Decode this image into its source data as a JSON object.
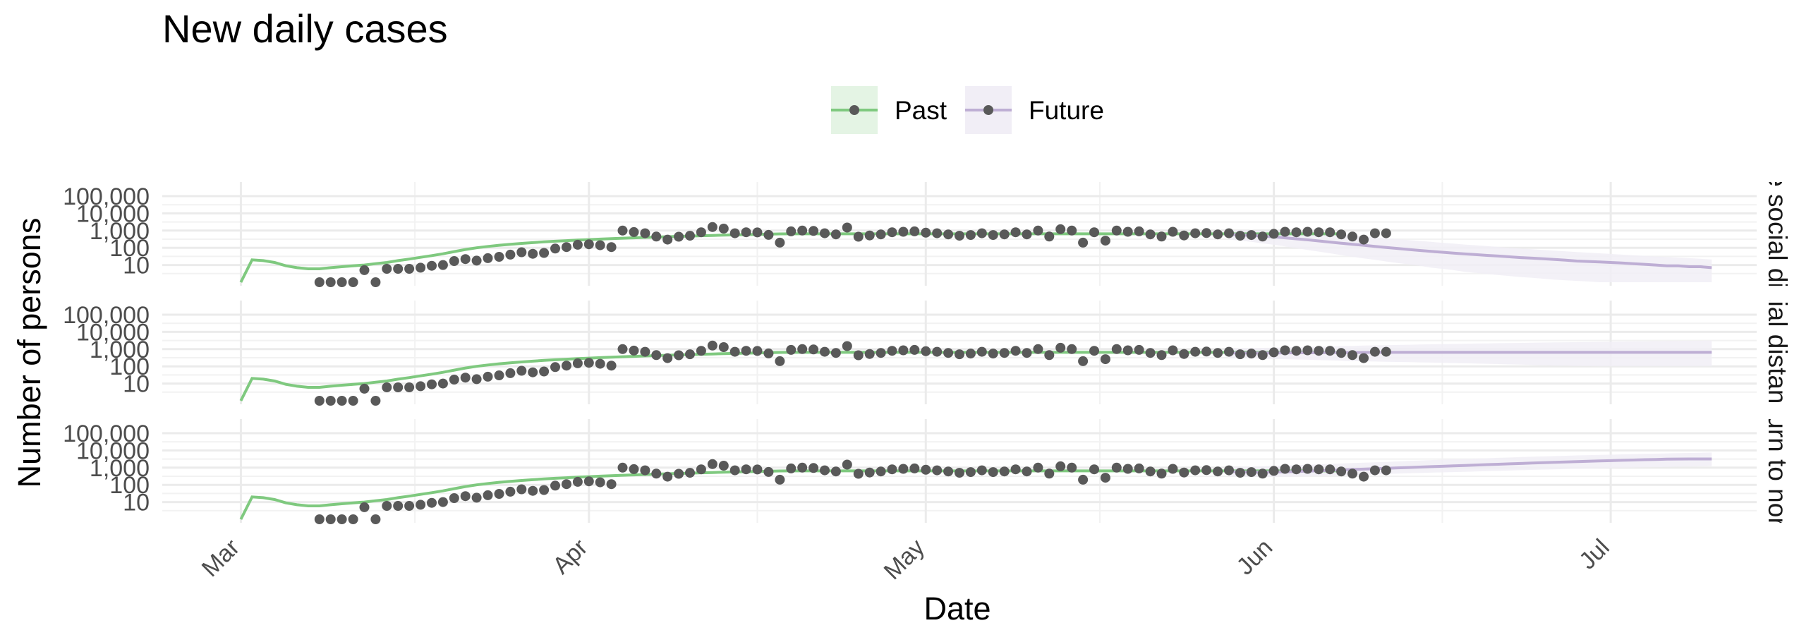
{
  "chart_data": {
    "type": "line",
    "title": "New daily cases",
    "xlabel": "Date",
    "ylabel": "Number of persons",
    "y_scale": "log10",
    "grid": true,
    "legend": {
      "position": "top",
      "entries": [
        {
          "name": "Past",
          "color": "#7fc97f",
          "fill": "#e4f4e4"
        },
        {
          "name": "Future",
          "color": "#beaed4",
          "fill": "#f1eef6"
        }
      ]
    },
    "x_ticks": [
      "Mar",
      "Apr",
      "May",
      "Jun",
      "Jul"
    ],
    "x_tick_dates": [
      "2020-03-01",
      "2020-04-01",
      "2020-05-01",
      "2020-06-01",
      "2020-07-01"
    ],
    "y_ticks": [
      "100,000",
      "10,000",
      "1,000",
      "100",
      "10"
    ],
    "y_tick_values": [
      100000,
      10000,
      1000,
      100,
      10
    ],
    "x_range": [
      "2020-02-23",
      "2020-07-14"
    ],
    "past_range": [
      "2020-03-01",
      "2020-05-27"
    ],
    "future_range": [
      "2020-05-28",
      "2020-07-10"
    ],
    "observed_cases": [
      null,
      null,
      null,
      1,
      1,
      1,
      1,
      5,
      1,
      6,
      6,
      6,
      7,
      9,
      10,
      17,
      22,
      18,
      25,
      30,
      40,
      55,
      45,
      50,
      90,
      110,
      150,
      160,
      140,
      110,
      1000,
      820,
      700,
      450,
      300,
      440,
      500,
      800,
      1600,
      1300,
      700,
      800,
      780,
      560,
      200,
      900,
      1000,
      950,
      700,
      600,
      1500,
      440,
      520,
      600,
      800,
      850,
      900,
      750,
      700,
      600,
      500,
      550,
      700,
      550,
      600,
      800,
      600,
      1000,
      450,
      1200,
      1000,
      200,
      800,
      260,
      1000,
      850,
      900,
      600,
      450,
      850,
      520,
      700,
      720,
      600,
      700,
      500,
      550,
      450,
      650,
      850,
      800,
      850,
      800,
      800,
      600,
      450,
      300,
      700,
      700
    ],
    "panels": [
      {
        "label": "Continue social distancing",
        "past_fit": [
          1,
          20,
          18,
          14,
          9,
          7,
          6,
          6,
          7,
          8,
          9,
          10,
          12,
          14,
          18,
          22,
          28,
          35,
          45,
          60,
          80,
          100,
          120,
          140,
          160,
          180,
          200,
          220,
          240,
          260,
          280,
          300,
          320,
          340,
          360,
          380,
          400,
          420,
          440,
          460,
          480,
          500,
          520,
          540,
          560,
          580,
          600,
          620,
          640,
          650,
          650,
          650,
          650,
          650,
          650,
          650,
          650,
          650,
          650,
          650,
          650,
          650,
          650,
          650,
          650,
          650,
          650,
          650,
          650,
          650,
          650,
          650,
          650,
          650,
          650,
          650,
          650,
          650,
          650,
          650,
          650,
          650,
          650,
          650,
          650,
          650,
          650,
          650,
          650,
          650,
          650,
          650,
          650,
          650,
          650,
          650,
          650,
          650,
          650
        ],
        "future_fit": [
          600,
          560,
          520,
          480,
          430,
          380,
          330,
          290,
          250,
          215,
          185,
          160,
          140,
          120,
          105,
          92,
          80,
          70,
          62,
          55,
          49,
          44,
          40,
          36,
          33,
          30,
          27,
          25,
          23,
          21,
          19,
          17,
          16,
          15,
          14,
          13,
          12,
          11,
          10,
          9,
          9,
          8,
          8,
          7
        ],
        "future_lower": [
          300,
          260,
          220,
          180,
          150,
          120,
          95,
          75,
          60,
          48,
          38,
          30,
          24,
          20,
          16,
          13,
          11,
          9,
          7,
          6,
          5,
          4,
          3.5,
          3,
          2.6,
          2.3,
          2,
          1.8,
          1.6,
          1.4,
          1.3,
          1.2,
          1.1,
          1,
          1,
          1,
          1,
          1,
          1,
          1,
          1,
          1,
          1,
          1
        ],
        "future_upper": [
          1100,
          1050,
          1000,
          950,
          900,
          850,
          800,
          750,
          700,
          640,
          580,
          520,
          460,
          410,
          360,
          320,
          280,
          250,
          220,
          195,
          175,
          155,
          140,
          125,
          112,
          100,
          90,
          82,
          75,
          68,
          62,
          57,
          52,
          48,
          44,
          40,
          37,
          34,
          31,
          29,
          27,
          25,
          23,
          21
        ]
      },
      {
        "label": "Partial distancing",
        "past_fit": [
          1,
          20,
          18,
          14,
          9,
          7,
          6,
          6,
          7,
          8,
          9,
          10,
          12,
          14,
          18,
          22,
          28,
          35,
          45,
          60,
          80,
          100,
          120,
          140,
          160,
          180,
          200,
          220,
          240,
          260,
          280,
          300,
          320,
          340,
          360,
          380,
          400,
          420,
          440,
          460,
          480,
          500,
          520,
          540,
          560,
          580,
          600,
          620,
          640,
          650,
          650,
          650,
          650,
          650,
          650,
          650,
          650,
          650,
          650,
          650,
          650,
          650,
          650,
          650,
          650,
          650,
          650,
          650,
          650,
          650,
          650,
          650,
          650,
          650,
          650,
          650,
          650,
          650,
          650,
          650,
          650,
          650,
          650,
          650,
          650,
          650,
          650,
          650,
          650,
          650,
          650,
          650,
          650,
          650,
          650,
          650,
          650,
          650,
          650
        ],
        "future_fit": [
          600,
          590,
          590,
          595,
          600,
          605,
          610,
          615,
          620,
          625,
          630,
          635,
          640,
          640,
          645,
          650,
          650,
          650,
          650,
          650,
          650,
          650,
          650,
          650,
          650,
          650,
          650,
          650,
          650,
          650,
          650,
          650,
          650,
          650,
          650,
          650,
          650,
          650,
          650,
          650,
          650,
          650,
          650,
          650
        ],
        "future_lower": [
          320,
          300,
          290,
          280,
          270,
          260,
          250,
          240,
          230,
          220,
          210,
          200,
          195,
          190,
          185,
          180,
          175,
          170,
          165,
          160,
          155,
          150,
          145,
          140,
          135,
          130,
          125,
          120,
          115,
          110,
          108,
          105,
          102,
          100,
          100,
          100,
          100,
          100,
          100,
          100,
          100,
          100,
          100,
          100
        ],
        "future_upper": [
          1100,
          1120,
          1150,
          1180,
          1220,
          1260,
          1300,
          1350,
          1400,
          1450,
          1500,
          1550,
          1600,
          1650,
          1700,
          1750,
          1800,
          1850,
          1900,
          1950,
          2000,
          2050,
          2100,
          2150,
          2200,
          2250,
          2300,
          2350,
          2400,
          2450,
          2500,
          2550,
          2600,
          2650,
          2700,
          2750,
          2800,
          2850,
          2900,
          2950,
          3000,
          3050,
          3100,
          3150
        ]
      },
      {
        "label": "Return to normal",
        "past_fit": [
          1,
          20,
          18,
          14,
          9,
          7,
          6,
          6,
          7,
          8,
          9,
          10,
          12,
          14,
          18,
          22,
          28,
          35,
          45,
          60,
          80,
          100,
          120,
          140,
          160,
          180,
          200,
          220,
          240,
          260,
          280,
          300,
          320,
          340,
          360,
          380,
          400,
          420,
          440,
          460,
          480,
          500,
          520,
          540,
          560,
          580,
          600,
          620,
          640,
          650,
          650,
          650,
          650,
          650,
          650,
          650,
          650,
          650,
          650,
          650,
          650,
          650,
          650,
          650,
          650,
          650,
          650,
          650,
          650,
          650,
          650,
          650,
          650,
          650,
          650,
          650,
          650,
          650,
          650,
          650,
          650,
          650,
          650,
          650,
          650,
          650,
          650,
          650,
          650,
          650,
          650,
          650,
          650,
          650,
          650,
          650,
          650,
          650,
          650
        ],
        "future_fit": [
          600,
          560,
          540,
          540,
          550,
          570,
          600,
          630,
          660,
          700,
          740,
          780,
          820,
          870,
          920,
          970,
          1020,
          1080,
          1140,
          1200,
          1270,
          1340,
          1420,
          1500,
          1580,
          1660,
          1750,
          1840,
          1930,
          2020,
          2120,
          2220,
          2330,
          2440,
          2550,
          2660,
          2780,
          2900,
          3000,
          3100,
          3150,
          3180,
          3190,
          3200
        ],
        "future_lower": [
          320,
          300,
          290,
          285,
          290,
          300,
          310,
          320,
          330,
          345,
          360,
          375,
          390,
          410,
          430,
          450,
          470,
          490,
          510,
          530,
          550,
          575,
          600,
          625,
          650,
          680,
          710,
          740,
          770,
          800,
          830,
          860,
          890,
          920,
          950,
          980,
          1010,
          1040,
          1070,
          1100,
          1130,
          1160,
          1190,
          1220
        ],
        "future_upper": [
          1100,
          1100,
          1150,
          1200,
          1260,
          1320,
          1400,
          1480,
          1560,
          1650,
          1750,
          1850,
          1950,
          2050,
          2150,
          2300,
          2450,
          2600,
          2750,
          2900,
          3050,
          3200,
          3350,
          3500,
          3700,
          3900,
          4100,
          4300,
          4500,
          4700,
          4900,
          5100,
          5300,
          5500,
          5700,
          5900,
          6100,
          6300,
          6500,
          6700,
          6900,
          7100,
          7300,
          7500
        ]
      }
    ]
  }
}
